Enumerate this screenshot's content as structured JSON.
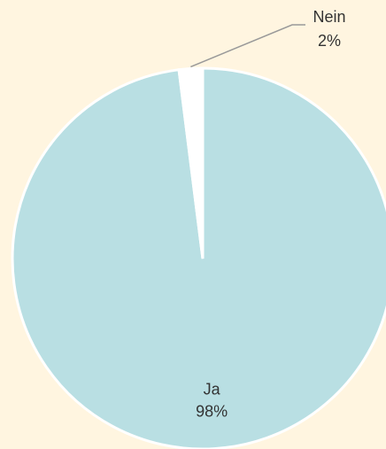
{
  "chart_data": {
    "type": "pie",
    "categories": [
      "Ja",
      "Nein"
    ],
    "values": [
      98,
      2
    ],
    "value_labels": [
      "98%",
      "2%"
    ],
    "colors": [
      "#b9dfe3",
      "#ffffff"
    ]
  }
}
